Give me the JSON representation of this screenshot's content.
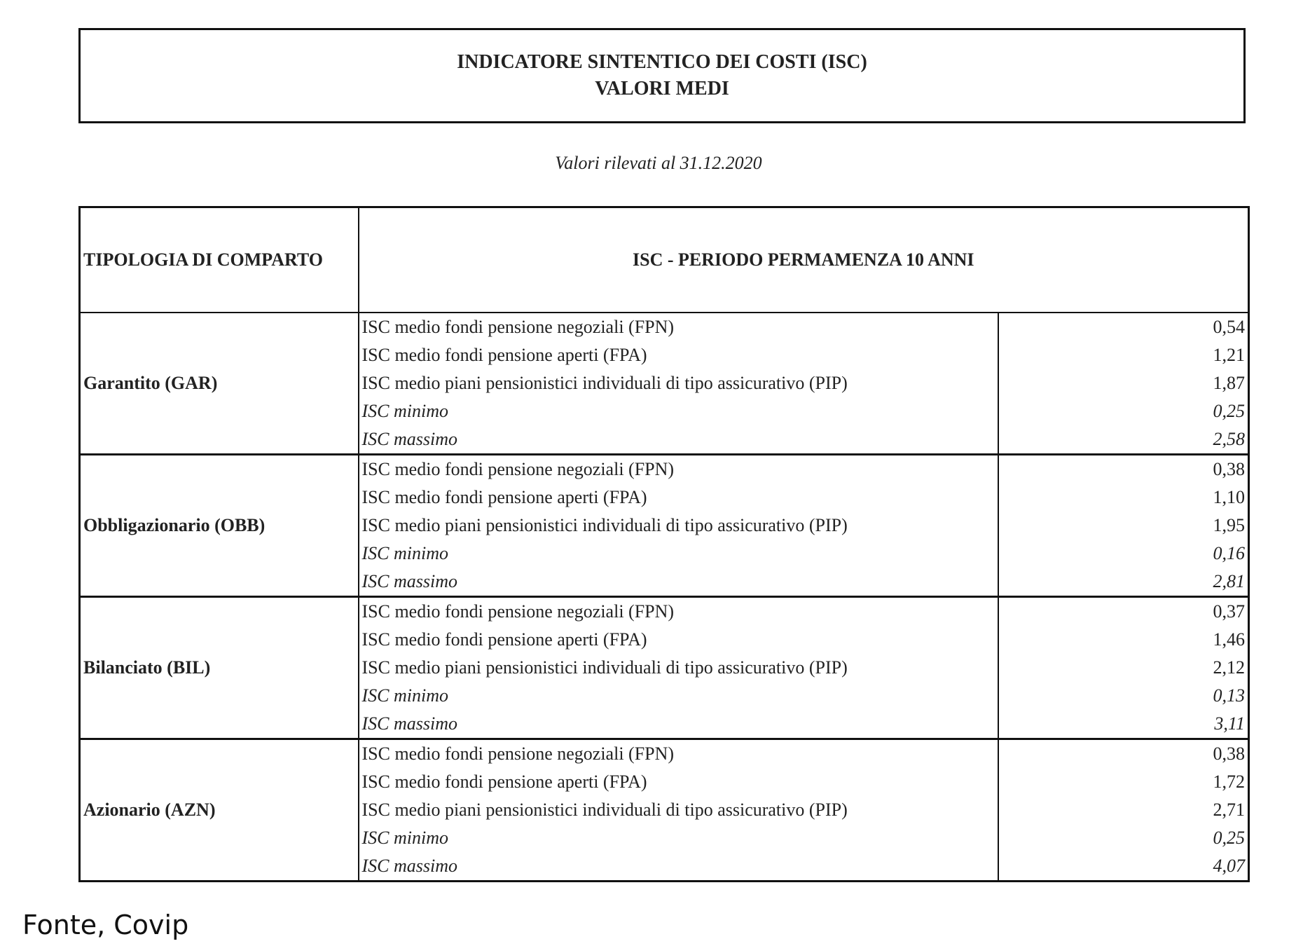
{
  "title": {
    "line1": "INDICATORE SINTENTICO DEI COSTI (ISC)",
    "line2": "VALORI MEDI"
  },
  "subtitle": "Valori rilevati al 31.12.2020",
  "table": {
    "header_col1": "TIPOLOGIA DI COMPARTO",
    "header_col2": "ISC  - PERIODO PERMAMENZA 10 ANNI",
    "groups": [
      {
        "name": "Garantito (GAR)",
        "rows": [
          {
            "label": "ISC medio fondi pensione negoziali (FPN)",
            "value": "0,54",
            "italic": false
          },
          {
            "label": "ISC medio fondi pensione aperti (FPA)",
            "value": "1,21",
            "italic": false
          },
          {
            "label": "ISC medio piani pensionistici individuali di tipo assicurativo (PIP)",
            "value": "1,87",
            "italic": false
          },
          {
            "label": "ISC minimo",
            "value": "0,25",
            "italic": true
          },
          {
            "label": "ISC massimo",
            "value": "2,58",
            "italic": true
          }
        ]
      },
      {
        "name": "Obbligazionario (OBB)",
        "rows": [
          {
            "label": "ISC medio fondi pensione negoziali (FPN)",
            "value": "0,38",
            "italic": false
          },
          {
            "label": "ISC medio fondi pensione aperti (FPA)",
            "value": "1,10",
            "italic": false
          },
          {
            "label": "ISC medio piani pensionistici individuali di tipo assicurativo (PIP)",
            "value": "1,95",
            "italic": false
          },
          {
            "label": "ISC minimo",
            "value": "0,16",
            "italic": true
          },
          {
            "label": "ISC massimo",
            "value": "2,81",
            "italic": true
          }
        ]
      },
      {
        "name": "Bilanciato (BIL)",
        "rows": [
          {
            "label": "ISC medio fondi pensione negoziali (FPN)",
            "value": "0,37",
            "italic": false
          },
          {
            "label": "ISC medio fondi pensione aperti (FPA)",
            "value": "1,46",
            "italic": false
          },
          {
            "label": "ISC medio piani pensionistici individuali di tipo assicurativo (PIP)",
            "value": "2,12",
            "italic": false
          },
          {
            "label": "ISC minimo",
            "value": "0,13",
            "italic": true
          },
          {
            "label": "ISC massimo",
            "value": "3,11",
            "italic": true
          }
        ]
      },
      {
        "name": "Azionario (AZN)",
        "rows": [
          {
            "label": "ISC medio fondi pensione negoziali (FPN)",
            "value": "0,38",
            "italic": false
          },
          {
            "label": "ISC medio fondi pensione aperti (FPA)",
            "value": "1,72",
            "italic": false
          },
          {
            "label": "ISC medio piani pensionistici individuali di tipo assicurativo (PIP)",
            "value": "2,71",
            "italic": false
          },
          {
            "label": "ISC minimo",
            "value": "0,25",
            "italic": true
          },
          {
            "label": "ISC massimo",
            "value": "4,07",
            "italic": true
          }
        ]
      }
    ]
  },
  "source": "Fonte, Covip"
}
